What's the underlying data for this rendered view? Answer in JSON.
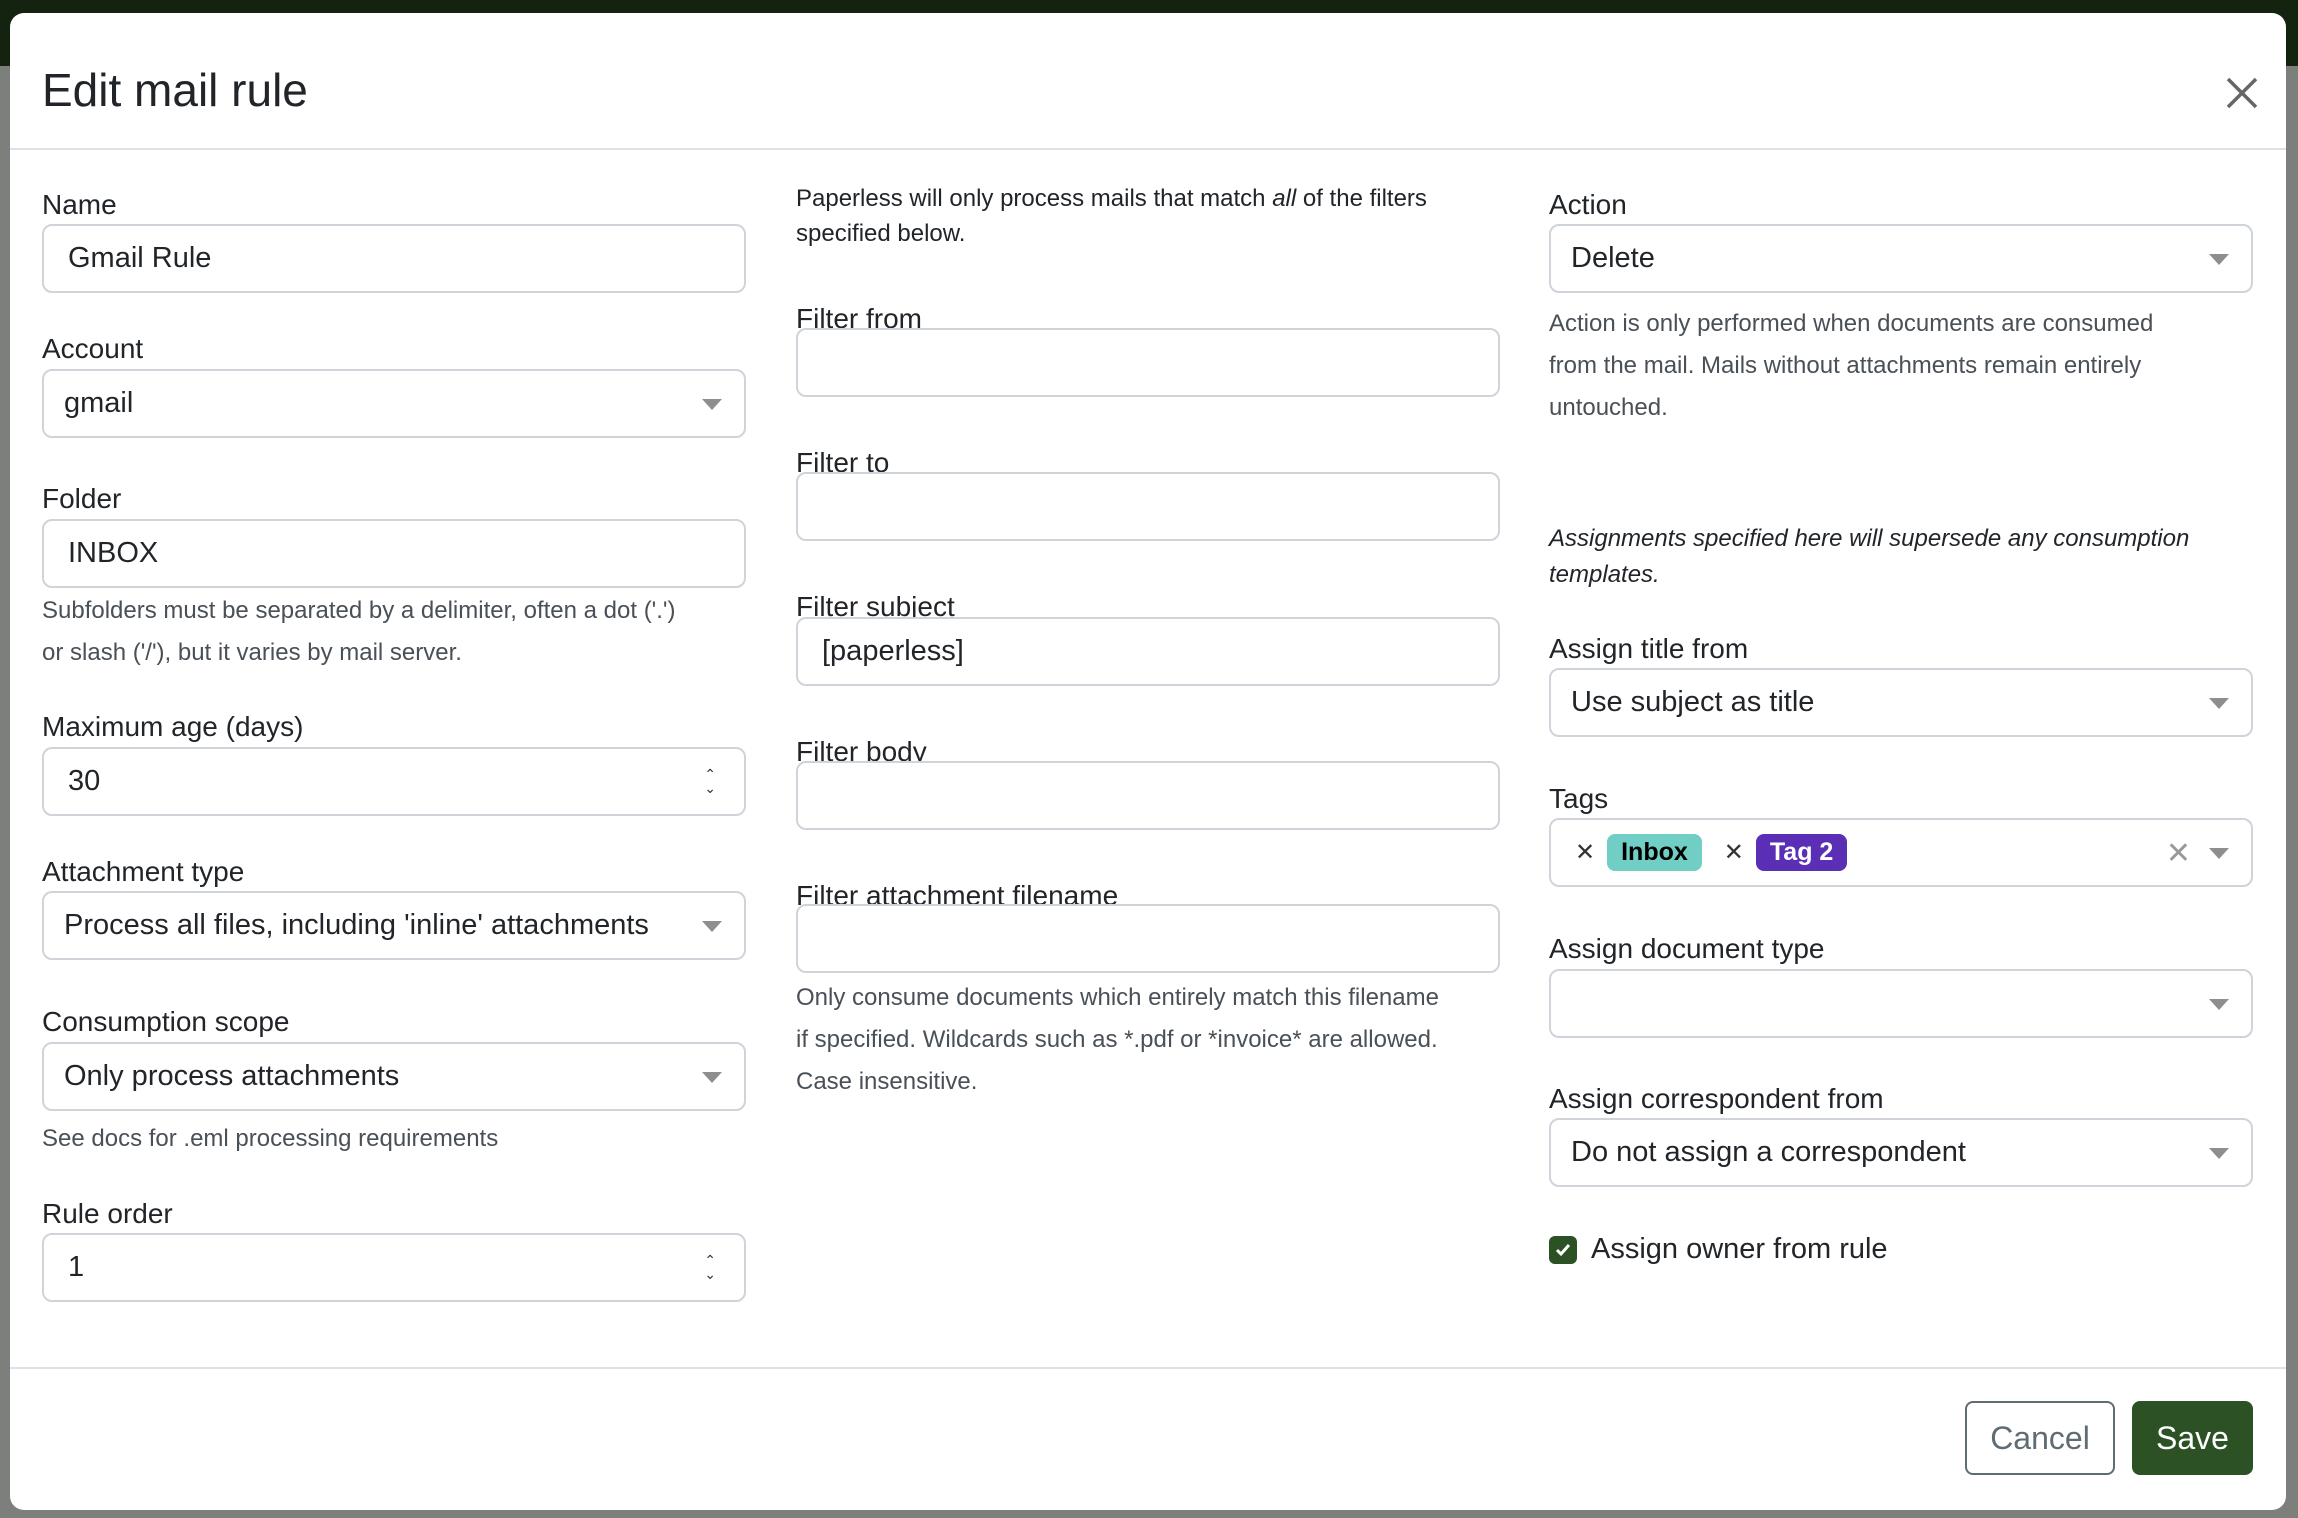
{
  "modal": {
    "title": "Edit mail rule"
  },
  "col1": {
    "name_label": "Name",
    "name_value": "Gmail Rule",
    "account_label": "Account",
    "account_value": "gmail",
    "folder_label": "Folder",
    "folder_value": "INBOX",
    "folder_help_1": "Subfolders must be separated by a delimiter, often a dot ('.')",
    "folder_help_2": "or slash ('/'), but it varies by mail server.",
    "max_age_label": "Maximum age (days)",
    "max_age_value": "30",
    "attachment_type_label": "Attachment type",
    "attachment_type_value": "Process all files, including 'inline' attachments",
    "consumption_scope_label": "Consumption scope",
    "consumption_scope_value": "Only process attachments",
    "consumption_scope_help": "See docs for .eml processing requirements",
    "rule_order_label": "Rule order",
    "rule_order_value": "1"
  },
  "col2": {
    "intro_pre": "Paperless will only process mails that match ",
    "intro_em": "all",
    "intro_post": " of the filters",
    "intro_2": "specified below.",
    "filter_from_label": "Filter from",
    "filter_from_value": "",
    "filter_to_label": "Filter to",
    "filter_to_value": "",
    "filter_subject_label": "Filter subject",
    "filter_subject_value": "[paperless]",
    "filter_body_label": "Filter body",
    "filter_body_value": "",
    "filter_attachment_label": "Filter attachment filename",
    "filter_attachment_value": "",
    "filter_attachment_help_1": "Only consume documents which entirely match this filename",
    "filter_attachment_help_2": "if specified. Wildcards such as *.pdf or *invoice* are allowed.",
    "filter_attachment_help_3": "Case insensitive."
  },
  "col3": {
    "action_label": "Action",
    "action_value": "Delete",
    "action_help_1": "Action is only performed when documents are consumed",
    "action_help_2": "from the mail. Mails without attachments remain entirely",
    "action_help_3": "untouched.",
    "assign_note_1": "Assignments specified here will supersede any consumption",
    "assign_note_2": "templates.",
    "assign_title_label": "Assign title from",
    "assign_title_value": "Use subject as title",
    "tags_label": "Tags",
    "tags": [
      {
        "label": "Inbox",
        "bg": "#70cec5",
        "fg": "#000000"
      },
      {
        "label": "Tag 2",
        "bg": "#5b2fb5",
        "fg": "#ffffff"
      }
    ],
    "doc_type_label": "Assign document type",
    "doc_type_value": "",
    "correspondent_label": "Assign correspondent from",
    "correspondent_value": "Do not assign a correspondent",
    "owner_label": "Assign owner from rule",
    "owner_checked": true
  },
  "footer": {
    "cancel": "Cancel",
    "save": "Save"
  },
  "colors": {
    "primary": "#2b5125",
    "topbar": "#13230f"
  },
  "icons": {
    "close": "close-icon",
    "caret": "caret-down-icon",
    "check": "check-icon",
    "spinner": "spinner-arrows-icon"
  }
}
